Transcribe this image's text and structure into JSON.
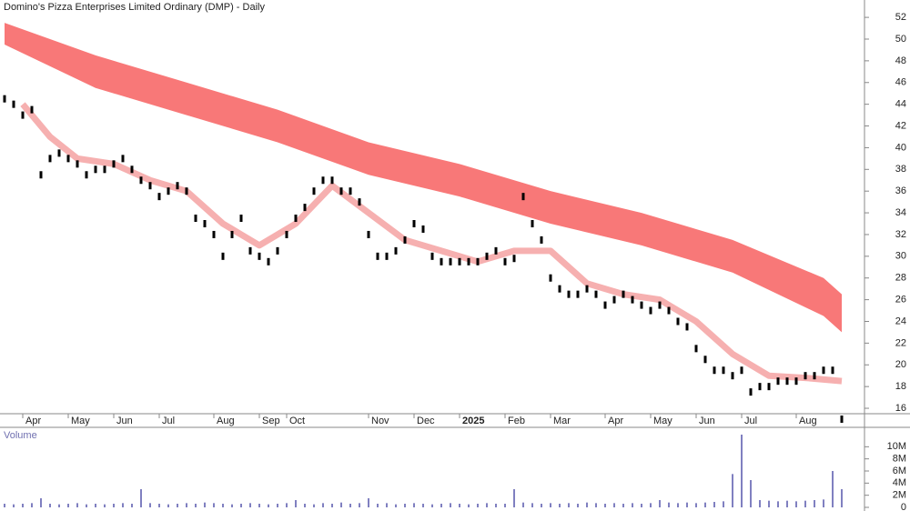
{
  "chart_data": [
    {
      "type": "stock",
      "title": "Domino's Pizza Enterprises Limited Ordinary (DMP) - Daily",
      "categories": [
        null,
        null,
        "Apr",
        null,
        null,
        null,
        null,
        "May",
        null,
        null,
        null,
        null,
        "Jun",
        null,
        null,
        null,
        null,
        "Jul",
        null,
        null,
        null,
        null,
        null,
        "Aug",
        null,
        null,
        null,
        null,
        "Sep",
        null,
        null,
        "Oct",
        null,
        null,
        null,
        null,
        null,
        null,
        null,
        null,
        "Nov",
        null,
        null,
        null,
        null,
        "Dec",
        null,
        null,
        null,
        null,
        "2025",
        null,
        null,
        null,
        null,
        "Feb",
        null,
        null,
        null,
        null,
        "Mar",
        null,
        null,
        null,
        null,
        null,
        "Apr",
        null,
        null,
        null,
        null,
        "May",
        null,
        null,
        null,
        null,
        "Jun",
        null,
        null,
        null,
        null,
        "Jul",
        null,
        null,
        null,
        null,
        null,
        "Aug",
        null,
        null,
        null,
        null,
        null
      ],
      "values": [
        44.5,
        44,
        43,
        43.5,
        37.5,
        39,
        39.5,
        39,
        38.5,
        37.5,
        38,
        38,
        38.5,
        39,
        38,
        37,
        36.5,
        35.5,
        36,
        36.5,
        36,
        33.5,
        33,
        32,
        30,
        32,
        33.5,
        30.5,
        30,
        29.5,
        30.5,
        32,
        33.5,
        34.5,
        36,
        37,
        37,
        36,
        36,
        35,
        32,
        30,
        30,
        30.5,
        31.5,
        33,
        32.5,
        30,
        29.5,
        29.5,
        29.5,
        29.5,
        29.5,
        30,
        30.5,
        29.5,
        29.8,
        35.5,
        33,
        31.5,
        28,
        27,
        26.5,
        26.5,
        27,
        26.5,
        25.5,
        26,
        26.5,
        26,
        25.5,
        25,
        25.5,
        25,
        24,
        23.5,
        21.5,
        20.5,
        19.5,
        19.5,
        19,
        19.5,
        17.5,
        18,
        18,
        18.5,
        18.5,
        18.5,
        19,
        19,
        19.5,
        19.5,
        15
      ],
      "color": "#000000",
      "ylim": [
        15.5,
        53.6
      ],
      "yticks": [
        16,
        18,
        20,
        22,
        24,
        26,
        28,
        30,
        32,
        34,
        36,
        38,
        40,
        42,
        44,
        46,
        48,
        50,
        52
      ],
      "bands": [
        {
          "color": "#f87878",
          "x": [
            0,
            10,
            20,
            30,
            40,
            50,
            60,
            70,
            80,
            90,
            92
          ],
          "upper": [
            51.5,
            48.5,
            46,
            43.5,
            40.5,
            38.5,
            36,
            34,
            31.5,
            28,
            26.5
          ],
          "lower": [
            49.5,
            45.5,
            43,
            40.5,
            37.5,
            35.5,
            33,
            31,
            28.5,
            24.5,
            23
          ]
        }
      ],
      "ma": {
        "color": "#f6b0b0",
        "x": [
          2,
          5,
          8,
          12,
          16,
          20,
          24,
          28,
          32,
          36,
          40,
          44,
          48,
          52,
          56,
          60,
          64,
          68,
          72,
          76,
          80,
          84,
          88,
          92
        ],
        "values": [
          44,
          41,
          39,
          38.5,
          37,
          36,
          33,
          31,
          33,
          36.5,
          34,
          31.5,
          30.5,
          29.5,
          30.5,
          30.5,
          27.5,
          26.5,
          26,
          24,
          21,
          19,
          18.8,
          18.5
        ]
      }
    },
    {
      "type": "bar",
      "title": "Volume",
      "color": "#8080c0",
      "values": [
        600000,
        500000,
        600000,
        700000,
        1500000,
        600000,
        500000,
        600000,
        700000,
        500000,
        600000,
        500000,
        600000,
        700000,
        600000,
        3000000,
        700000,
        600000,
        500000,
        600000,
        700000,
        600000,
        800000,
        700000,
        600000,
        500000,
        600000,
        700000,
        600000,
        500000,
        600000,
        700000,
        1200000,
        600000,
        500000,
        700000,
        600000,
        800000,
        600000,
        700000,
        1500000,
        600000,
        700000,
        500000,
        600000,
        700000,
        600000,
        500000,
        600000,
        700000,
        600000,
        500000,
        600000,
        700000,
        600000,
        600000,
        3000000,
        800000,
        700000,
        600000,
        700000,
        600000,
        700000,
        600000,
        800000,
        700000,
        600000,
        700000,
        600000,
        700000,
        600000,
        700000,
        1200000,
        800000,
        700000,
        800000,
        700000,
        800000,
        900000,
        1000000,
        5500000,
        12000000,
        4500000,
        1200000,
        1100000,
        1000000,
        1100000,
        1000000,
        1100000,
        1200000,
        1300000,
        6000000,
        3000000
      ],
      "ylim": [
        0,
        12000000
      ],
      "yticks": [
        {
          "value": 0,
          "label": "0"
        },
        {
          "value": 2000000,
          "label": "2M"
        },
        {
          "value": 4000000,
          "label": "4M"
        },
        {
          "value": 6000000,
          "label": "6M"
        },
        {
          "value": 8000000,
          "label": "8M"
        },
        {
          "value": 10000000,
          "label": "10M"
        }
      ]
    }
  ]
}
